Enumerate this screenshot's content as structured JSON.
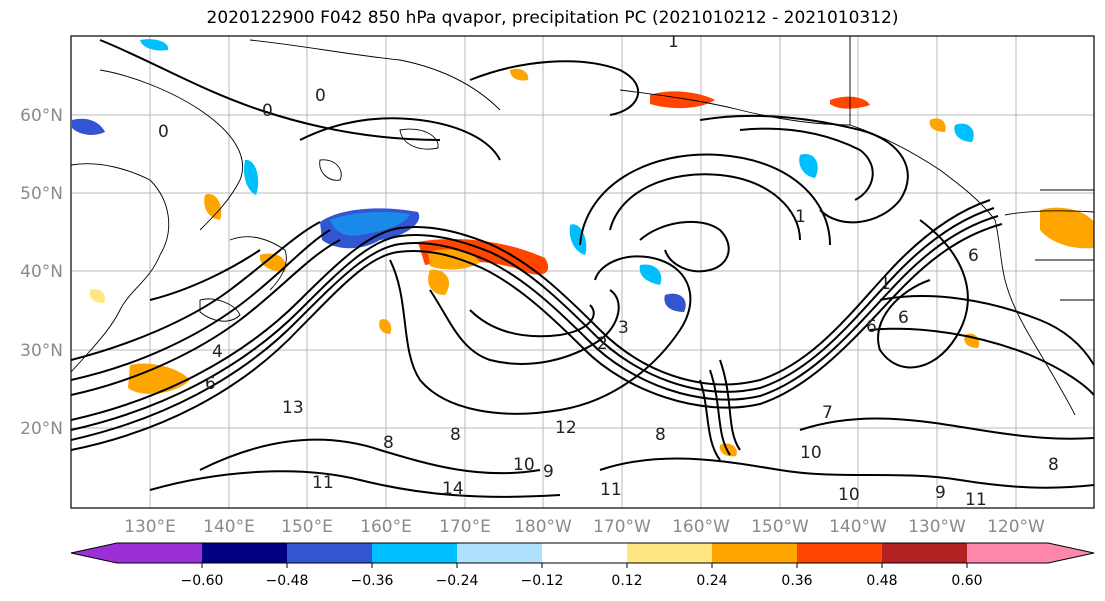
{
  "title": "2020122900 F042 850 hPa qvapor, precipitation PC (2021010212 - 2021010312)",
  "map": {
    "lat_labels": [
      "60°N",
      "50°N",
      "40°N",
      "30°N",
      "20°N"
    ],
    "lon_labels": [
      "130°E",
      "140°E",
      "150°E",
      "160°E",
      "170°E",
      "180°W",
      "170°W",
      "160°W",
      "150°W",
      "140°W",
      "130°W",
      "120°W"
    ],
    "contour_labels": [
      "0",
      "0",
      "0",
      "1",
      "1",
      "1",
      "2",
      "3",
      "4",
      "6",
      "6",
      "6",
      "6",
      "7",
      "8",
      "8",
      "8",
      "8",
      "9",
      "9",
      "10",
      "10",
      "10",
      "11",
      "11",
      "11",
      "12",
      "13",
      "14"
    ]
  },
  "colorbar": {
    "ticks": [
      "−0.60",
      "−0.48",
      "−0.36",
      "−0.24",
      "−0.12",
      "0.12",
      "0.24",
      "0.36",
      "0.48",
      "0.60"
    ],
    "colors": [
      "#9b30d9",
      "#000080",
      "#3455d1",
      "#00bfff",
      "#b0e2ff",
      "#ffffff",
      "#ffe680",
      "#ffa500",
      "#ff4500",
      "#b22222",
      "#ff88aa"
    ]
  }
}
